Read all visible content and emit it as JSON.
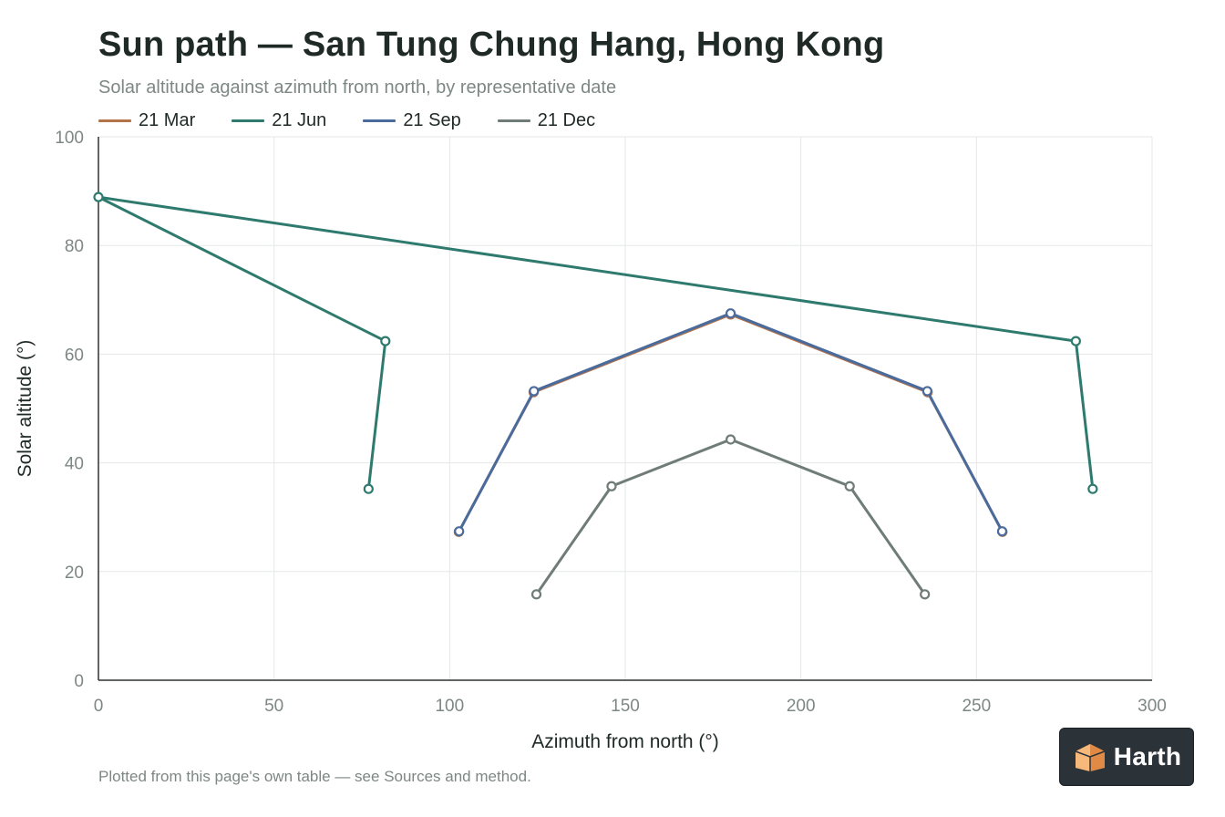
{
  "title": "Sun path — San Tung Chung Hang, Hong Kong",
  "subtitle": "Solar altitude against azimuth from north, by representative date",
  "footnote": "Plotted from this page's own table — see Sources and method.",
  "brand": {
    "name": "Harth",
    "icon": "harth-logo-icon"
  },
  "chart_data": {
    "type": "line",
    "xlabel": "Azimuth from north (°)",
    "ylabel": "Solar altitude (°)",
    "xlim": [
      0,
      300
    ],
    "ylim": [
      0,
      100
    ],
    "x_ticks": [
      0,
      50,
      100,
      150,
      200,
      250,
      300
    ],
    "y_ticks": [
      0,
      20,
      40,
      60,
      80,
      100
    ],
    "grid": true,
    "legend_position": "top-left",
    "series": [
      {
        "name": "21 Mar",
        "color": "#b5734a",
        "points": [
          [
            102.6,
            27.3
          ],
          [
            123.9,
            53.0
          ],
          [
            180.0,
            67.3
          ],
          [
            236.1,
            53.0
          ],
          [
            257.4,
            27.3
          ]
        ]
      },
      {
        "name": "21 Jun",
        "color": "#2e7a6e",
        "points": [
          [
            76.9,
            35.2
          ],
          [
            81.7,
            62.4
          ],
          [
            0.0,
            88.9
          ],
          [
            278.3,
            62.4
          ],
          [
            283.1,
            35.2
          ]
        ]
      },
      {
        "name": "21 Sep",
        "color": "#4a6b9c",
        "points": [
          [
            102.7,
            27.4
          ],
          [
            124.0,
            53.2
          ],
          [
            180.0,
            67.5
          ],
          [
            236.0,
            53.2
          ],
          [
            257.3,
            27.4
          ]
        ]
      },
      {
        "name": "21 Dec",
        "color": "#6f7c77",
        "points": [
          [
            124.7,
            15.8
          ],
          [
            146.1,
            35.7
          ],
          [
            180.0,
            44.3
          ],
          [
            213.9,
            35.7
          ],
          [
            235.3,
            15.8
          ]
        ]
      }
    ]
  }
}
